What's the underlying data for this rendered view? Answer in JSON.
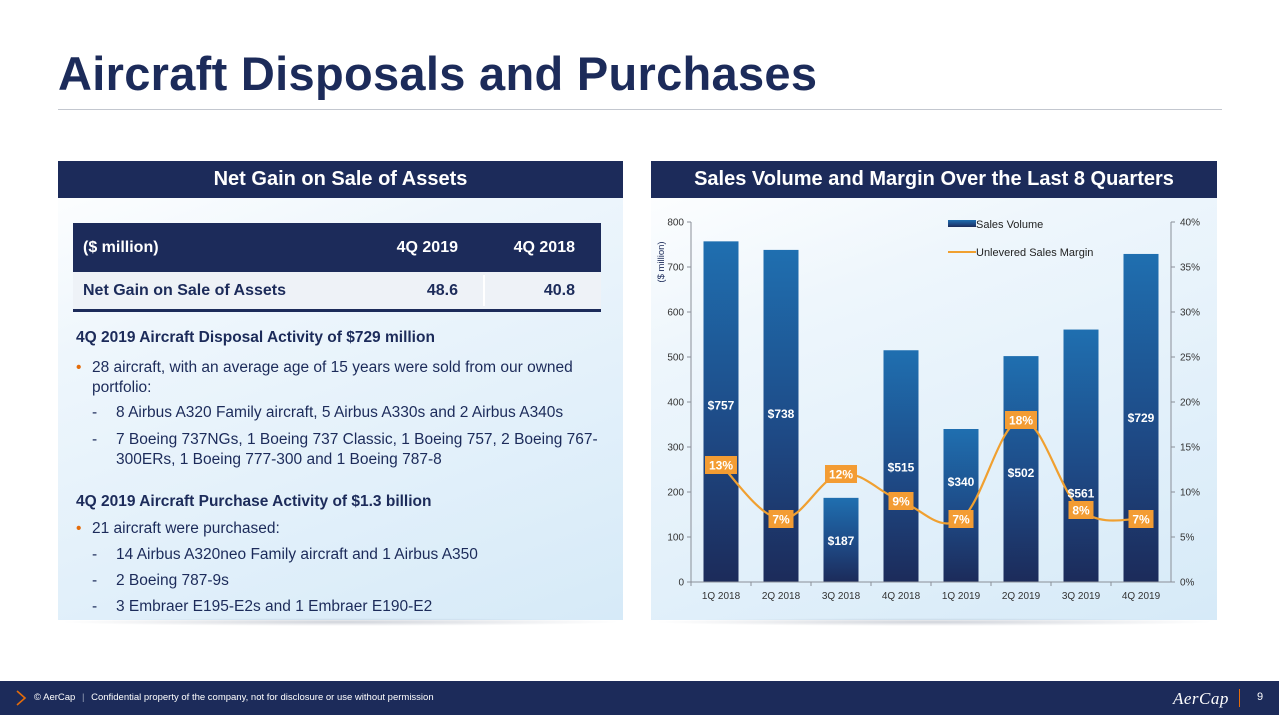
{
  "title": "Aircraft Disposals and Purchases",
  "left_panel": {
    "heading": "Net Gain on Sale of Assets",
    "table": {
      "headers": [
        "($ million)",
        "4Q 2019",
        "4Q 2018"
      ],
      "row": [
        "Net Gain on Sale of Assets",
        "48.6",
        "40.8"
      ]
    },
    "disposal": {
      "title": "4Q 2019 Aircraft Disposal Activity of $729 million",
      "bullet": "28 aircraft, with an average age of 15 years were sold from our owned portfolio:",
      "dashes": [
        "8 Airbus A320 Family aircraft, 5 Airbus A330s and 2 Airbus A340s",
        "7 Boeing 737NGs, 1 Boeing 737 Classic, 1 Boeing 757, 2 Boeing 767-300ERs, 1 Boeing 777-300 and 1 Boeing 787-8"
      ]
    },
    "purchase": {
      "title": "4Q 2019 Aircraft Purchase Activity of $1.3 billion",
      "bullet": "21 aircraft were purchased:",
      "dashes": [
        "14 Airbus A320neo Family aircraft and 1 Airbus A350",
        "2 Boeing 787-9s",
        "3 Embraer E195-E2s and 1 Embraer E190-E2"
      ]
    },
    "bullet_glyph": "•",
    "dash_glyph": "-"
  },
  "right_panel": {
    "heading": "Sales Volume and Margin Over the Last 8 Quarters"
  },
  "chart_data": {
    "type": "bar",
    "categories": [
      "1Q 2018",
      "2Q 2018",
      "3Q 2018",
      "4Q 2018",
      "1Q 2019",
      "2Q 2019",
      "3Q 2019",
      "4Q 2019"
    ],
    "series": [
      {
        "name": "Sales Volume",
        "type": "bar",
        "axis": "left",
        "values": [
          757,
          738,
          187,
          515,
          340,
          502,
          561,
          729
        ],
        "labels": [
          "$757",
          "$738",
          "$187",
          "$515",
          "$340",
          "$502",
          "$561",
          "$729"
        ]
      },
      {
        "name": "Unlevered Sales Margin",
        "type": "line",
        "axis": "right",
        "values": [
          13,
          7,
          12,
          9,
          7,
          18,
          8,
          7
        ],
        "labels": [
          "13%",
          "7%",
          "12%",
          "9%",
          "7%",
          "18%",
          "8%",
          "7%"
        ]
      }
    ],
    "ylabel": "($ million)",
    "ylim": [
      0,
      800
    ],
    "yticks": [
      "0",
      "100",
      "200",
      "300",
      "400",
      "500",
      "600",
      "700",
      "800"
    ],
    "y2lim": [
      0,
      40
    ],
    "y2ticks": [
      "0%",
      "5%",
      "10%",
      "15%",
      "20%",
      "25%",
      "30%",
      "35%",
      "40%"
    ],
    "legend_position": "top-right",
    "colors": {
      "bar_top": "#1f6fb0",
      "bar_bottom": "#1c2b5a",
      "line": "#f0a030",
      "label_box": "#f39c33"
    }
  },
  "footer": {
    "copyright": "© AerCap",
    "notice": "Confidential property of the company, not for disclosure or use without permission",
    "logo": "AerCap",
    "page": "9"
  }
}
